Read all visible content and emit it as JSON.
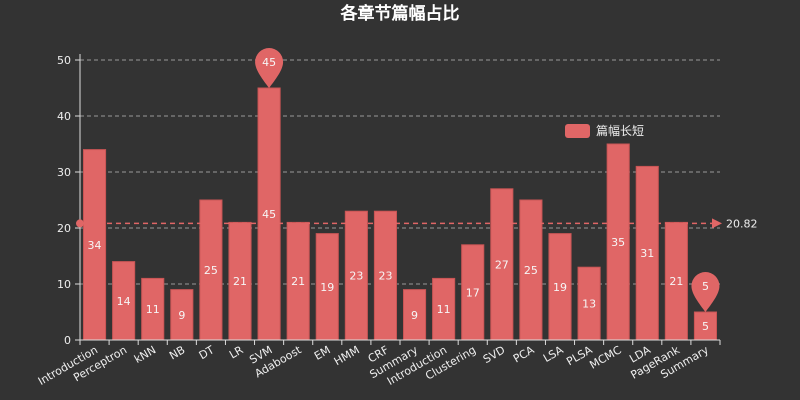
{
  "colors": {
    "background": "#333333",
    "bar": "#e06666",
    "bar_stroke": "#c95555",
    "axis": "#dddddd",
    "grid": "#9a9a9a",
    "text": "#eeeeee"
  },
  "chart_data": {
    "type": "bar",
    "title": "各章节篇幅占比",
    "xlabel": "",
    "ylabel": "",
    "ylim": [
      0,
      50
    ],
    "yticks": [
      0,
      10,
      20,
      30,
      40,
      50
    ],
    "grid": true,
    "legend_position": "right",
    "categories": [
      "Introduction",
      "Perceptron",
      "kNN",
      "NB",
      "DT",
      "LR",
      "SVM",
      "Adaboost",
      "EM",
      "HMM",
      "CRF",
      "Summary",
      "Introduction",
      "Clustering",
      "SVD",
      "PCA",
      "LSA",
      "PLSA",
      "MCMC",
      "LDA",
      "PageRank",
      "Summary"
    ],
    "series": [
      {
        "name": "篇幅长短",
        "values": [
          34,
          14,
          11,
          9,
          25,
          21,
          45,
          21,
          19,
          23,
          23,
          9,
          11,
          17,
          27,
          25,
          19,
          13,
          35,
          31,
          21,
          5
        ]
      }
    ],
    "mark_points": [
      {
        "type": "max",
        "label": "45",
        "category_index": 6,
        "value": 45
      },
      {
        "type": "min",
        "label": "5",
        "category_index": 21,
        "value": 5
      }
    ],
    "mark_line": {
      "type": "average",
      "value": 20.82,
      "label": "20.82"
    }
  }
}
